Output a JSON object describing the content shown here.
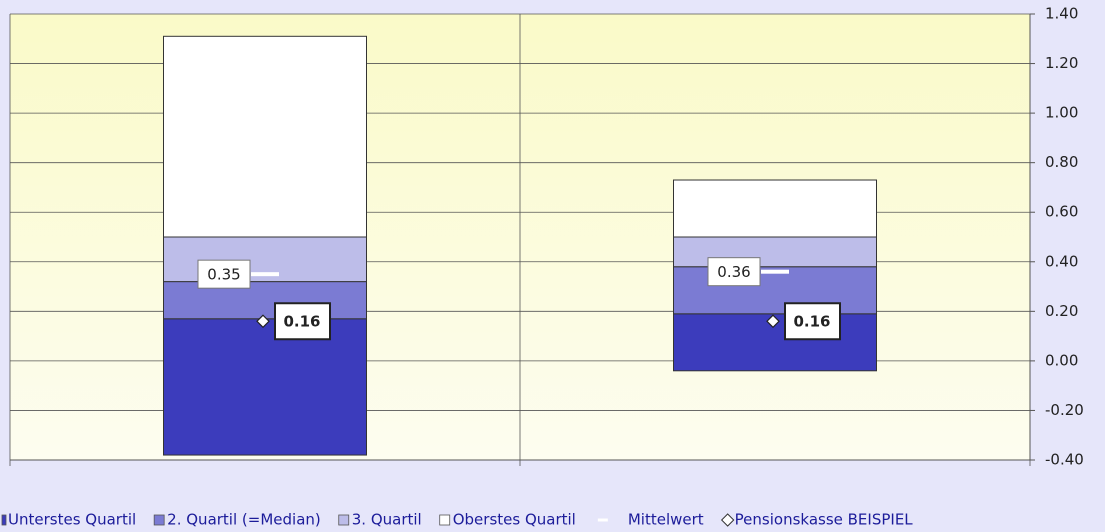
{
  "chart_data": {
    "type": "floating_stacked_bar",
    "categories": [
      null,
      null
    ],
    "base": [
      -0.38,
      -0.04
    ],
    "series": [
      {
        "name": "Unterstes Quartil",
        "color": "#3c3cbc",
        "values": [
          0.55,
          0.23
        ]
      },
      {
        "name": "2. Quartil (=Median)",
        "color": "#7b7bd3",
        "values": [
          0.15,
          0.19
        ]
      },
      {
        "name": "3. Quartil",
        "color": "#bdbde9",
        "values": [
          0.18,
          0.12
        ]
      },
      {
        "name": "Oberstes Quartil",
        "color": "#ffffff",
        "values": [
          0.81,
          0.23
        ]
      },
      {
        "name": "Mittelwert",
        "color": "#ffffff",
        "marker": "dash",
        "values": [
          0.35,
          0.36
        ]
      },
      {
        "name": "Pensionskasse BEISPIEL",
        "color": "#ffffff",
        "marker": "diamond",
        "values": [
          0.16,
          0.16
        ]
      }
    ],
    "ylim": [
      -0.4,
      1.4
    ],
    "yticks": [
      {
        "value": -0.4,
        "label": "-0.40"
      },
      {
        "value": -0.2,
        "label": "-0.20"
      },
      {
        "value": 0,
        "label": "0.00"
      },
      {
        "value": 0.2,
        "label": "0.20"
      },
      {
        "value": 0.4,
        "label": "0.40"
      },
      {
        "value": 0.6,
        "label": "0.60"
      },
      {
        "value": 0.8,
        "label": "0.80"
      },
      {
        "value": 1,
        "label": "1.00"
      },
      {
        "value": 1.2,
        "label": "1.20"
      },
      {
        "value": 1.4,
        "label": "1.40"
      }
    ],
    "grid": true,
    "legend": "bottom"
  }
}
